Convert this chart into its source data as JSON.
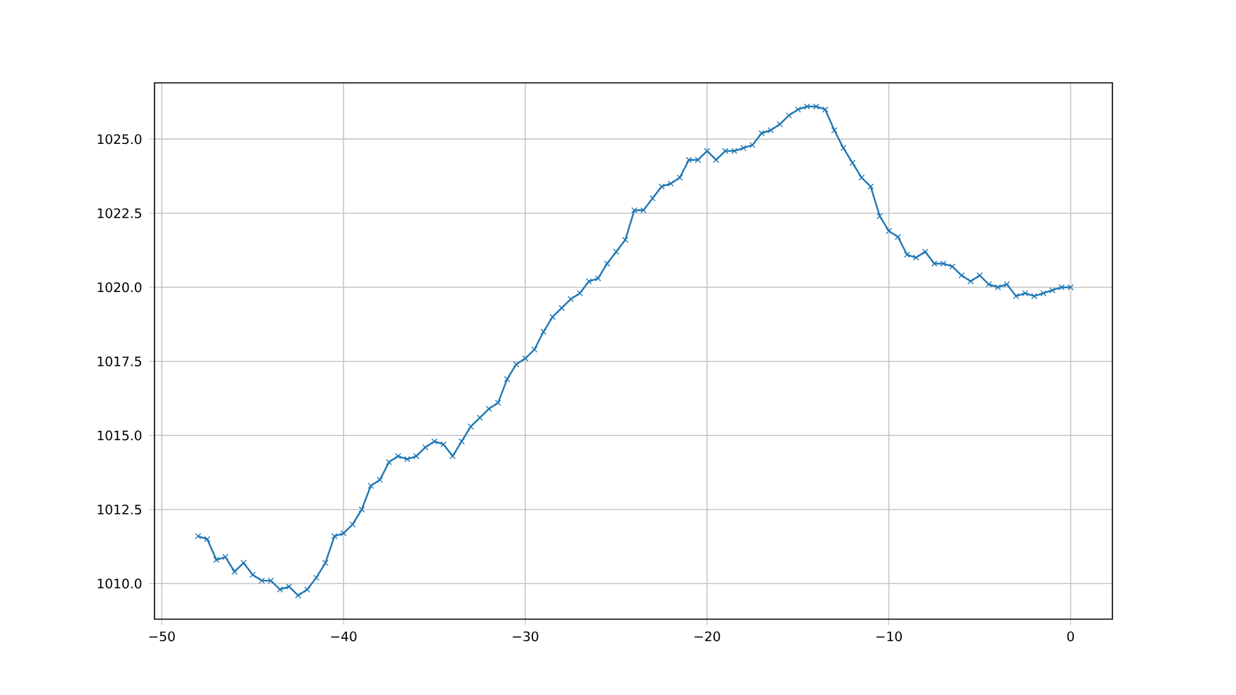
{
  "chart_data": {
    "type": "line",
    "color": "#1f77b4",
    "marker": "cross",
    "grid": true,
    "x": [
      -48,
      -47.5,
      -47,
      -46.5,
      -46,
      -45.5,
      -45,
      -44.5,
      -44,
      -43.5,
      -43,
      -42.5,
      -42,
      -41.5,
      -41,
      -40.5,
      -40,
      -39.5,
      -39,
      -38.5,
      -38,
      -37.5,
      -37,
      -36.5,
      -36,
      -35.5,
      -35,
      -34.5,
      -34,
      -33.5,
      -33,
      -32.5,
      -32,
      -31.5,
      -31,
      -30.5,
      -30,
      -29.5,
      -29,
      -28.5,
      -28,
      -27.5,
      -27,
      -26.5,
      -26,
      -25.5,
      -25,
      -24.5,
      -24,
      -23.5,
      -23,
      -22.5,
      -22,
      -21.5,
      -21,
      -20.5,
      -20,
      -19.5,
      -19,
      -18.5,
      -18,
      -17.5,
      -17,
      -16.5,
      -16,
      -15.5,
      -15,
      -14.5,
      -14,
      -13.5,
      -13,
      -12.5,
      -12,
      -11.5,
      -11,
      -10.5,
      -10,
      -9.5,
      -9,
      -8.5,
      -8,
      -7.5,
      -7,
      -6.5,
      -6,
      -5.5,
      -5,
      -4.5,
      -4,
      -3.5,
      -3,
      -2.5,
      -2,
      -1.5,
      -1,
      -0.5,
      0
    ],
    "values": [
      1011.6,
      1011.5,
      1010.8,
      1010.9,
      1010.4,
      1010.7,
      1010.3,
      1010.1,
      1010.1,
      1009.8,
      1009.9,
      1009.6,
      1009.8,
      1010.2,
      1010.7,
      1011.6,
      1011.7,
      1012.0,
      1012.5,
      1013.3,
      1013.5,
      1014.1,
      1014.3,
      1014.2,
      1014.3,
      1014.6,
      1014.8,
      1014.7,
      1014.3,
      1014.8,
      1015.3,
      1015.6,
      1015.9,
      1016.1,
      1016.9,
      1017.4,
      1017.6,
      1017.9,
      1018.5,
      1019.0,
      1019.3,
      1019.6,
      1019.8,
      1020.2,
      1020.3,
      1020.8,
      1021.2,
      1021.6,
      1022.6,
      1022.6,
      1023.0,
      1023.4,
      1023.5,
      1023.7,
      1024.3,
      1024.3,
      1024.6,
      1024.3,
      1024.6,
      1024.6,
      1024.7,
      1024.8,
      1025.2,
      1025.3,
      1025.5,
      1025.8,
      1026.0,
      1026.1,
      1026.1,
      1026.0,
      1025.3,
      1024.7,
      1024.2,
      1023.7,
      1023.4,
      1022.4,
      1021.9,
      1021.7,
      1021.1,
      1021.0,
      1021.2,
      1020.8,
      1020.8,
      1020.7,
      1020.4,
      1020.2,
      1020.4,
      1020.1,
      1020.0,
      1020.1,
      1019.7,
      1019.8,
      1019.7,
      1019.8,
      1019.9,
      1020.0,
      1020.0
    ],
    "xlim": [
      -50.4,
      2.3
    ],
    "ylim": [
      1008.8,
      1026.9
    ],
    "xticks": [
      {
        "value": -50,
        "label": "−50"
      },
      {
        "value": -40,
        "label": "−40"
      },
      {
        "value": -30,
        "label": "−30"
      },
      {
        "value": -20,
        "label": "−20"
      },
      {
        "value": -10,
        "label": "−10"
      },
      0
    ],
    "yticks": [
      {
        "value": 1010,
        "label": "1010.0"
      },
      {
        "value": 1012.5,
        "label": "1012.5"
      },
      {
        "value": 1015,
        "label": "1015.0"
      },
      {
        "value": 1017.5,
        "label": "1017.5"
      },
      {
        "value": 1020,
        "label": "1020.0"
      },
      {
        "value": 1022.5,
        "label": "1022.5"
      },
      {
        "value": 1025,
        "label": "1025.0"
      }
    ]
  }
}
